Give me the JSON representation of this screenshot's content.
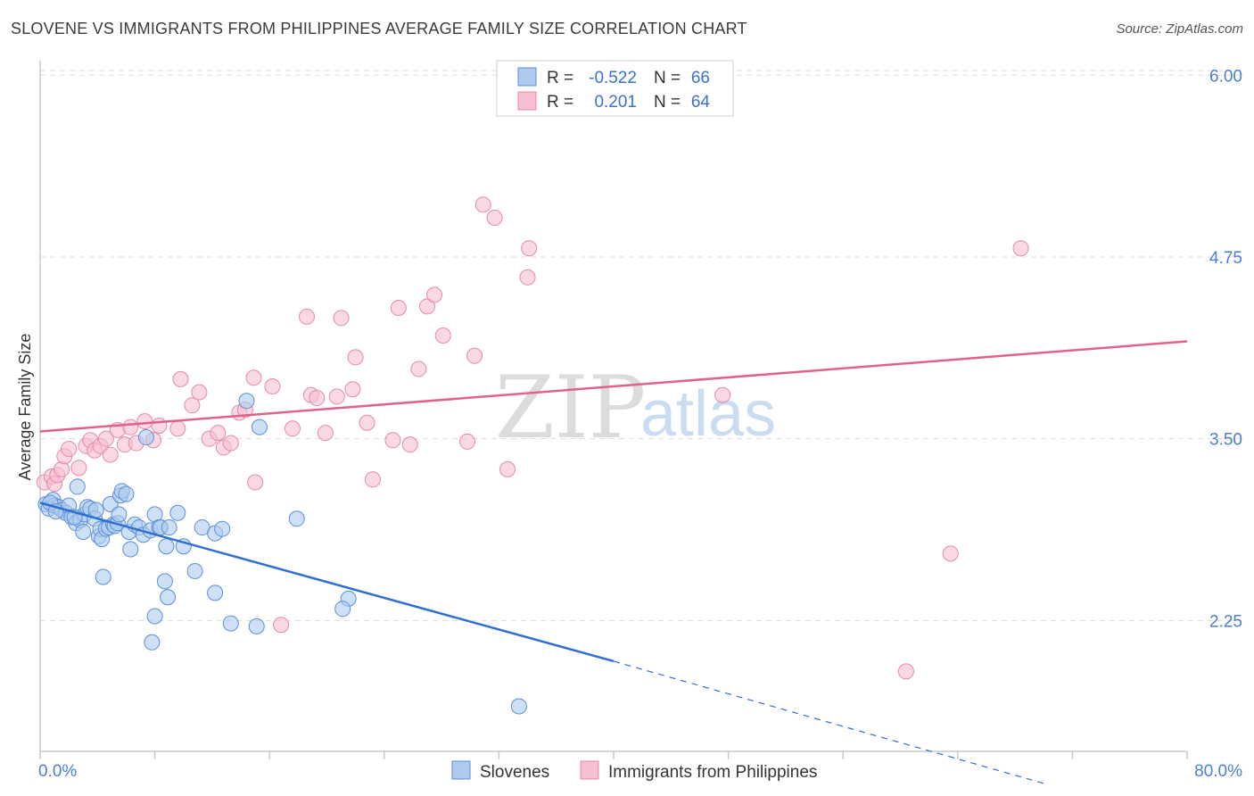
{
  "title": "SLOVENE VS IMMIGRANTS FROM PHILIPPINES AVERAGE FAMILY SIZE CORRELATION CHART",
  "source": "Source: ZipAtlas.com",
  "watermark": {
    "zip": "ZIP",
    "atlas": "atlas"
  },
  "colors": {
    "blue_fill": "#aecbef",
    "blue_stroke": "#5b8fd8",
    "blue_line": "#2f6fd0",
    "pink_fill": "#f6c0d0",
    "pink_stroke": "#e58aa8",
    "pink_line": "#e0628a",
    "grid": "#dddddd",
    "tick_text": "#4a7fd4"
  },
  "legend": {
    "r_label": "R =",
    "n_label": "N =",
    "rows": [
      {
        "r": "-0.522",
        "n": "66"
      },
      {
        "r": "0.201",
        "n": "64"
      }
    ]
  },
  "chart_data": {
    "type": "scatter",
    "title": "SLOVENE VS IMMIGRANTS FROM PHILIPPINES AVERAGE FAMILY SIZE CORRELATION CHART",
    "xlabel": "",
    "ylabel": "Average Family Size",
    "xlim": [
      0,
      80
    ],
    "ylim": [
      1.35,
      6.1
    ],
    "x_tick_labels": [
      "0.0%",
      "80.0%"
    ],
    "y_ticks": [
      2.25,
      3.5,
      4.75,
      6.0
    ],
    "y_tick_labels": [
      "2.25",
      "3.50",
      "4.75",
      "6.00"
    ],
    "grid": true,
    "legend_position": "top-center",
    "series": [
      {
        "name": "Slovenes",
        "color": "#aecbef",
        "trend": {
          "x": [
            0,
            40
          ],
          "y": [
            3.06,
            1.97
          ],
          "dashed_to": [
            70,
            1.13
          ]
        },
        "points": [
          [
            0.4,
            3.05
          ],
          [
            0.6,
            3.02
          ],
          [
            0.9,
            3.08
          ],
          [
            1.0,
            3.04
          ],
          [
            1.3,
            3.03
          ],
          [
            1.5,
            3.01
          ],
          [
            1.8,
            2.99
          ],
          [
            2.0,
            3.04
          ],
          [
            2.2,
            2.96
          ],
          [
            2.5,
            2.92
          ],
          [
            2.6,
            3.17
          ],
          [
            2.8,
            2.94
          ],
          [
            3.0,
            2.86
          ],
          [
            3.1,
            2.98
          ],
          [
            3.3,
            3.03
          ],
          [
            3.5,
            3.02
          ],
          [
            3.8,
            2.95
          ],
          [
            3.9,
            3.01
          ],
          [
            4.1,
            2.83
          ],
          [
            4.2,
            2.88
          ],
          [
            4.3,
            2.81
          ],
          [
            4.6,
            2.88
          ],
          [
            4.8,
            2.89
          ],
          [
            4.9,
            3.05
          ],
          [
            5.1,
            2.91
          ],
          [
            5.2,
            2.9
          ],
          [
            5.4,
            2.92
          ],
          [
            5.5,
            2.98
          ],
          [
            5.6,
            3.11
          ],
          [
            5.7,
            3.14
          ],
          [
            6.0,
            3.12
          ],
          [
            6.2,
            2.86
          ],
          [
            6.3,
            2.74
          ],
          [
            6.6,
            2.91
          ],
          [
            6.9,
            2.89
          ],
          [
            7.2,
            2.84
          ],
          [
            7.4,
            3.51
          ],
          [
            7.7,
            2.87
          ],
          [
            8.0,
            2.98
          ],
          [
            8.3,
            2.89
          ],
          [
            8.4,
            2.89
          ],
          [
            8.8,
            2.76
          ],
          [
            9.0,
            2.89
          ],
          [
            9.6,
            2.99
          ],
          [
            10.0,
            2.76
          ],
          [
            10.8,
            2.59
          ],
          [
            11.3,
            2.89
          ],
          [
            12.2,
            2.85
          ],
          [
            12.7,
            2.88
          ],
          [
            14.4,
            3.76
          ],
          [
            15.3,
            3.58
          ],
          [
            17.9,
            2.95
          ],
          [
            4.4,
            2.55
          ],
          [
            8.7,
            2.52
          ],
          [
            8.9,
            2.41
          ],
          [
            8.0,
            2.28
          ],
          [
            7.8,
            2.1
          ],
          [
            12.2,
            2.44
          ],
          [
            13.3,
            2.23
          ],
          [
            15.1,
            2.21
          ],
          [
            21.5,
            2.4
          ],
          [
            21.1,
            2.33
          ],
          [
            33.4,
            1.66
          ],
          [
            0.7,
            3.06
          ],
          [
            1.1,
            3.0
          ],
          [
            2.4,
            2.96
          ]
        ]
      },
      {
        "name": "Immigrants from Philippines",
        "color": "#f6c0d0",
        "trend": {
          "x": [
            0,
            80
          ],
          "y": [
            3.55,
            4.17
          ]
        },
        "points": [
          [
            0.3,
            3.2
          ],
          [
            0.8,
            3.24
          ],
          [
            1.0,
            3.19
          ],
          [
            1.2,
            3.25
          ],
          [
            1.5,
            3.29
          ],
          [
            1.7,
            3.38
          ],
          [
            2.0,
            3.43
          ],
          [
            2.7,
            3.3
          ],
          [
            3.2,
            3.45
          ],
          [
            3.5,
            3.49
          ],
          [
            3.8,
            3.42
          ],
          [
            4.2,
            3.45
          ],
          [
            4.6,
            3.5
          ],
          [
            4.9,
            3.39
          ],
          [
            5.4,
            3.56
          ],
          [
            5.9,
            3.46
          ],
          [
            6.3,
            3.58
          ],
          [
            6.7,
            3.47
          ],
          [
            7.3,
            3.62
          ],
          [
            7.9,
            3.49
          ],
          [
            8.3,
            3.59
          ],
          [
            9.6,
            3.57
          ],
          [
            9.8,
            3.91
          ],
          [
            10.6,
            3.73
          ],
          [
            11.1,
            3.82
          ],
          [
            11.8,
            3.5
          ],
          [
            12.4,
            3.54
          ],
          [
            12.8,
            3.44
          ],
          [
            13.3,
            3.47
          ],
          [
            13.9,
            3.68
          ],
          [
            14.3,
            3.7
          ],
          [
            14.9,
            3.92
          ],
          [
            15.0,
            3.2
          ],
          [
            16.2,
            3.86
          ],
          [
            17.6,
            3.57
          ],
          [
            18.6,
            4.34
          ],
          [
            18.9,
            3.8
          ],
          [
            19.3,
            3.78
          ],
          [
            19.9,
            3.54
          ],
          [
            20.7,
            3.79
          ],
          [
            21.0,
            4.33
          ],
          [
            21.8,
            3.84
          ],
          [
            22.0,
            4.06
          ],
          [
            22.8,
            3.61
          ],
          [
            23.2,
            3.22
          ],
          [
            24.6,
            3.49
          ],
          [
            25.0,
            4.4
          ],
          [
            25.8,
            3.46
          ],
          [
            26.4,
            3.98
          ],
          [
            27.0,
            4.41
          ],
          [
            27.5,
            4.49
          ],
          [
            28.1,
            4.21
          ],
          [
            29.8,
            3.48
          ],
          [
            30.3,
            4.07
          ],
          [
            30.9,
            5.11
          ],
          [
            31.7,
            5.02
          ],
          [
            32.6,
            3.29
          ],
          [
            34.1,
            4.81
          ],
          [
            34.0,
            4.61
          ],
          [
            47.6,
            3.8
          ],
          [
            68.4,
            4.81
          ],
          [
            63.5,
            2.71
          ],
          [
            60.4,
            1.9
          ],
          [
            16.8,
            2.22
          ]
        ]
      }
    ]
  },
  "bottom_legend": [
    {
      "label": "Slovenes"
    },
    {
      "label": "Immigrants from Philippines"
    }
  ]
}
